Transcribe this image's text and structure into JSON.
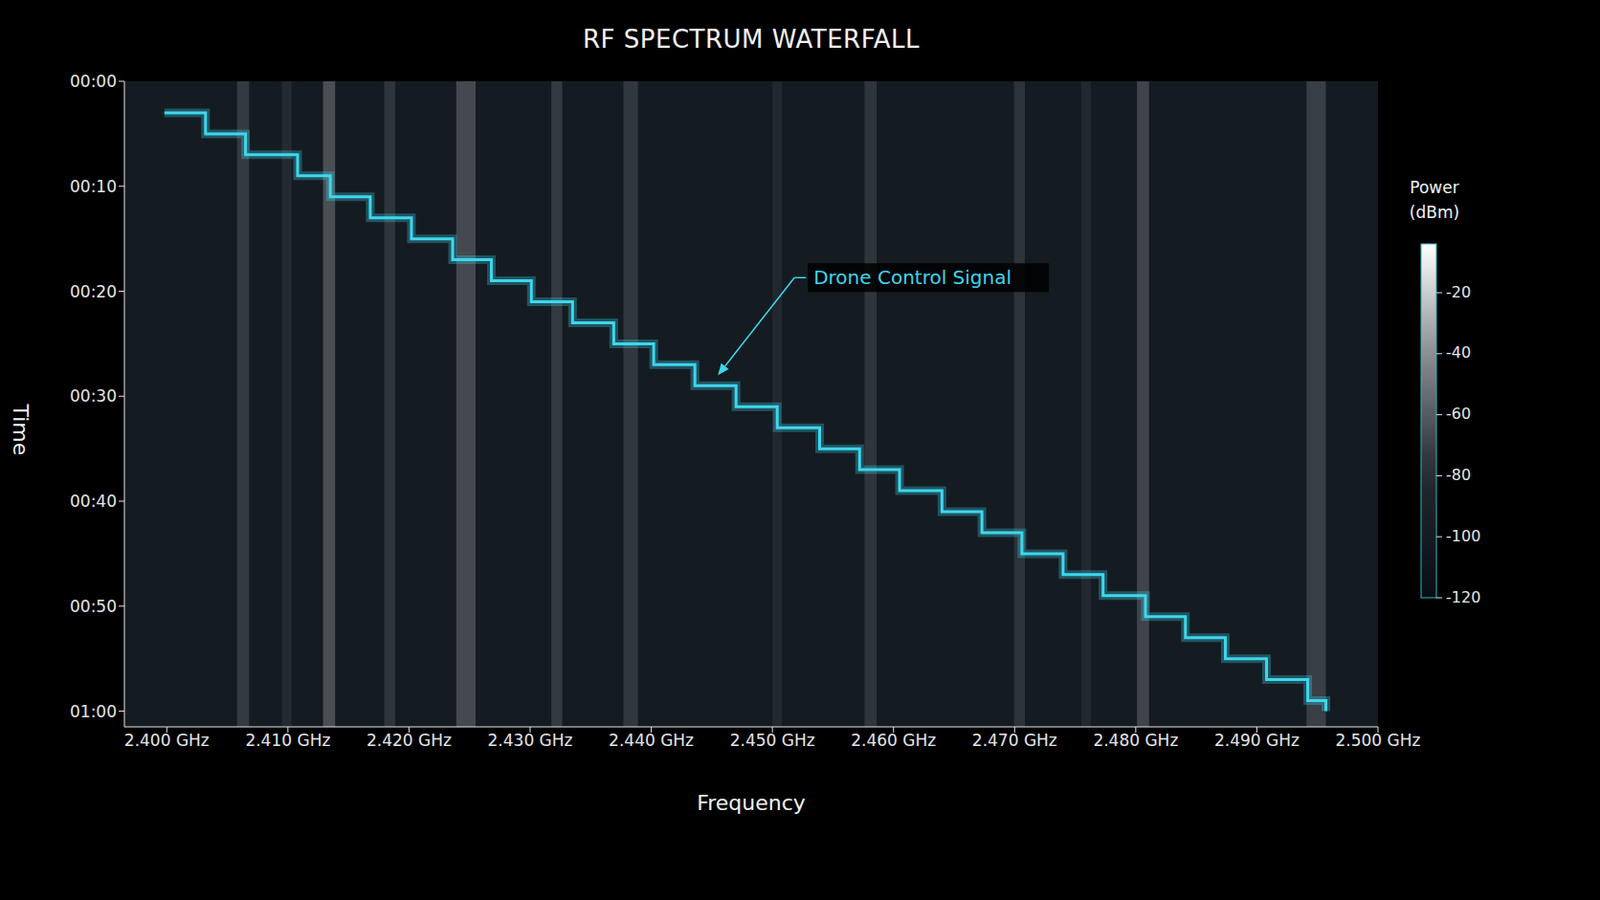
{
  "chart_data": {
    "type": "waterfall",
    "title": "RF SPECTRUM WATERFALL",
    "x_label": "Frequency",
    "y_label": "Time",
    "xlim": [
      2.3965,
      2.5
    ],
    "xticks": [
      {
        "value": 2.4,
        "label": "2.400 GHz"
      },
      {
        "value": 2.41,
        "label": "2.410 GHz"
      },
      {
        "value": 2.42,
        "label": "2.420 GHz"
      },
      {
        "value": 2.43,
        "label": "2.430 GHz"
      },
      {
        "value": 2.44,
        "label": "2.440 GHz"
      },
      {
        "value": 2.45,
        "label": "2.450 GHz"
      },
      {
        "value": 2.46,
        "label": "2.460 GHz"
      },
      {
        "value": 2.47,
        "label": "2.470 GHz"
      },
      {
        "value": 2.48,
        "label": "2.480 GHz"
      },
      {
        "value": 2.49,
        "label": "2.490 GHz"
      },
      {
        "value": 2.5,
        "label": "2.500 GHz"
      }
    ],
    "ylim": [
      0,
      61.5
    ],
    "yticks": [
      {
        "value": 0,
        "label": "00:00"
      },
      {
        "value": 10,
        "label": "00:10"
      },
      {
        "value": 20,
        "label": "00:20"
      },
      {
        "value": 30,
        "label": "00:30"
      },
      {
        "value": 40,
        "label": "00:40"
      },
      {
        "value": 50,
        "label": "00:50"
      },
      {
        "value": 60,
        "label": "01:00"
      }
    ],
    "series": [
      {
        "color": "#3fd6ee",
        "line_style": "step",
        "x": [
          2.3998,
          2.4032,
          2.4065,
          2.4108,
          2.4135,
          2.4168,
          2.4202,
          2.4236,
          2.4268,
          2.4301,
          2.4335,
          2.4369,
          2.4402,
          2.4436,
          2.447,
          2.4504,
          2.4539,
          2.4572,
          2.4605,
          2.464,
          2.4673,
          2.4706,
          2.474,
          2.4773,
          2.4808,
          2.4841,
          2.4874,
          2.4908,
          2.4942,
          2.4957
        ],
        "values": [
          3,
          5,
          7,
          9,
          11,
          13,
          15,
          17,
          19,
          21,
          23,
          25,
          27,
          29,
          31,
          33,
          35,
          37,
          39,
          41,
          43,
          45,
          47,
          49,
          51,
          53,
          55,
          57,
          59,
          60
        ]
      }
    ],
    "annotations": [
      {
        "text": "Drone Control Signal",
        "x": 2.4455,
        "y": 28.0
      }
    ],
    "interference": {
      "frequencies": [
        2.4063,
        2.4099,
        2.4134,
        2.4184,
        2.4247,
        2.4322,
        2.4383,
        2.4504,
        2.4581,
        2.4704,
        2.4759,
        2.4806,
        2.4949
      ],
      "widths": [
        0.001,
        0.0008,
        0.001,
        0.0009,
        0.0016,
        0.0009,
        0.0012,
        0.0008,
        0.001,
        0.0009,
        0.0008,
        0.001,
        0.0016
      ],
      "power": [
        -55,
        -70,
        -35,
        -60,
        -40,
        -55,
        -58,
        -72,
        -60,
        -62,
        -72,
        -45,
        -50
      ]
    },
    "noise_floor": -100,
    "colorbar": {
      "label": "Power (dBm)",
      "range": [
        -120,
        -4
      ],
      "ticks": [
        -20,
        -40,
        -60,
        -80,
        -100,
        -120
      ]
    },
    "grid": false
  }
}
